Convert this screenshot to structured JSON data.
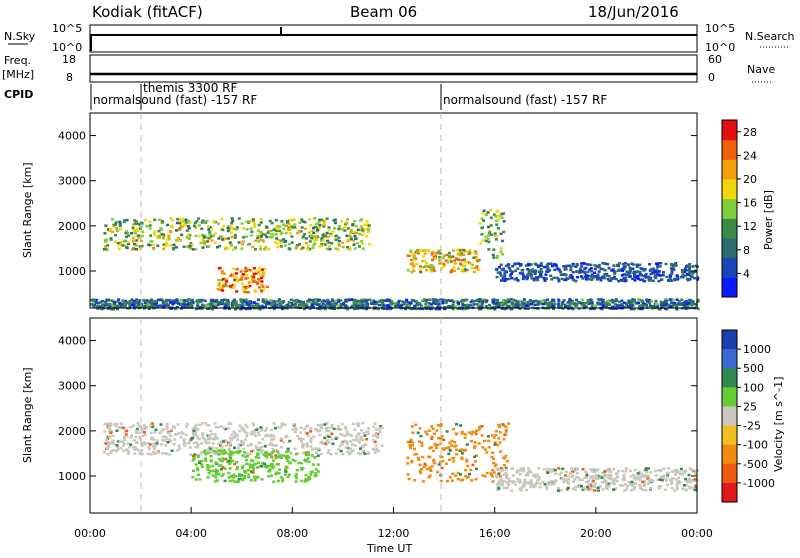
{
  "header": {
    "station": "Kodiak (fitACF)",
    "beam": "Beam 06",
    "date": "18/Jun/2016"
  },
  "info_panels": {
    "nsky_label": "N.Sky",
    "nsky_ticks": [
      "10^5",
      "10^0"
    ],
    "nsearch_label": "N.Search",
    "nsearch_ticks": [
      "10^5",
      "10^0"
    ],
    "freq_label": "Freq.",
    "freq_unit": "[MHz]",
    "freq_ticks": [
      "18",
      "8"
    ],
    "nave_label": "Nave",
    "nave_ticks": [
      "60",
      "0"
    ],
    "cpid_label": "CPID",
    "cpid_segments": [
      {
        "label": "normalsound (fast) -157 RF",
        "start": "00:00"
      },
      {
        "label": "themis 3300 RF",
        "start": "02:00"
      },
      {
        "label": "normalsound (fast) -157 RF",
        "start": "14:00"
      }
    ]
  },
  "chart_data": [
    {
      "type": "heatmap",
      "title": "",
      "xlabel": "",
      "ylabel": "Slant Range [km]",
      "xlim": [
        "00:00",
        "24:00"
      ],
      "ylim": [
        180,
        4500
      ],
      "yticks": [
        1000,
        2000,
        3000,
        4000
      ],
      "colorbar": {
        "label": "Power [dB]",
        "ticks": [
          4,
          8,
          12,
          16,
          20,
          24,
          28
        ],
        "range": [
          0,
          30
        ],
        "colors": [
          "#0a1cff",
          "#1a45b8",
          "#2e6b6e",
          "#3a8a48",
          "#7fcf3a",
          "#f0d80a",
          "#f5a00a",
          "#f0600a",
          "#e21010"
        ]
      },
      "features": [
        {
          "t_start": "00:30",
          "t_end": "11:00",
          "range_km": [
            1500,
            2200
          ],
          "power_db": [
            8,
            22
          ]
        },
        {
          "t_start": "05:00",
          "t_end": "07:00",
          "range_km": [
            550,
            1100
          ],
          "power_db": [
            16,
            30
          ]
        },
        {
          "t_start": "12:30",
          "t_end": "15:20",
          "range_km": [
            1000,
            1500
          ],
          "power_db": [
            12,
            26
          ]
        },
        {
          "t_start": "15:20",
          "t_end": "16:20",
          "range_km": [
            1300,
            2400
          ],
          "power_db": [
            8,
            20
          ]
        },
        {
          "t_start": "16:00",
          "t_end": "24:00",
          "range_km": [
            800,
            1200
          ],
          "power_db": [
            2,
            10
          ]
        },
        {
          "t_start": "00:00",
          "t_end": "24:00",
          "range_km": [
            180,
            400
          ],
          "power_db": [
            2,
            14
          ]
        }
      ]
    },
    {
      "type": "heatmap",
      "title": "",
      "xlabel": "Time UT",
      "ylabel": "Slant Range [km]",
      "xlim": [
        "00:00",
        "24:00"
      ],
      "xticks": [
        "00:00",
        "04:00",
        "08:00",
        "12:00",
        "16:00",
        "20:00",
        "00:00"
      ],
      "ylim": [
        180,
        4500
      ],
      "yticks": [
        1000,
        2000,
        3000,
        4000
      ],
      "colorbar": {
        "label": "Velocity [m s^-1]",
        "ticks": [
          "1000",
          "500",
          "100",
          "25",
          "-25",
          "-100",
          "-500",
          "-1000"
        ],
        "colors": [
          "#1c3fb0",
          "#3a6ad0",
          "#2e8a50",
          "#66cc33",
          "#c8c8c0",
          "#f0c020",
          "#f08a10",
          "#f05a10",
          "#e01818"
        ]
      },
      "features": [
        {
          "t_start": "00:30",
          "t_end": "11:30",
          "range_km": [
            1500,
            2200
          ],
          "velocity_class": "ground scatter (grey)"
        },
        {
          "t_start": "04:00",
          "t_end": "09:00",
          "range_km": [
            900,
            1600
          ],
          "velocity_class": "100 to 500 (green)"
        },
        {
          "t_start": "12:30",
          "t_end": "16:30",
          "range_km": [
            900,
            2200
          ],
          "velocity_class": "-100 to -500 (orange)"
        },
        {
          "t_start": "16:00",
          "t_end": "24:00",
          "range_km": [
            700,
            1200
          ],
          "velocity_class": "ground scatter (grey)"
        }
      ]
    }
  ]
}
